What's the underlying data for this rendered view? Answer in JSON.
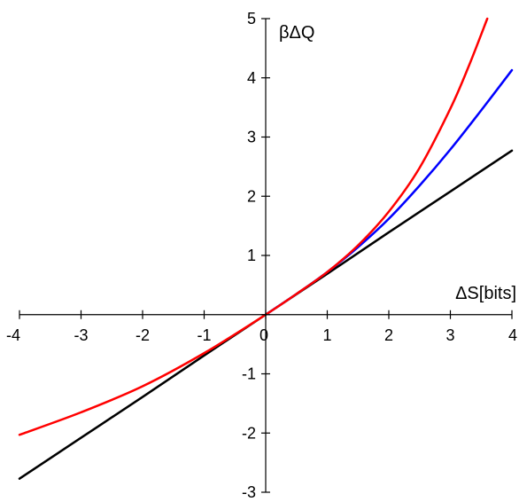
{
  "chart_data": {
    "type": "line",
    "title": "",
    "xlabel": "ΔS[bits]",
    "ylabel": "βΔQ",
    "xlim": [
      -4,
      4
    ],
    "ylim": [
      -3,
      5
    ],
    "xticks": [
      -4,
      -3,
      -2,
      -1,
      0,
      1,
      2,
      3,
      4
    ],
    "yticks": [
      -3,
      -2,
      -1,
      0,
      1,
      2,
      3,
      4,
      5
    ],
    "xtick_labels": [
      "-4",
      "-3",
      "-2",
      "-1",
      "0",
      "1",
      "2",
      "3",
      "4"
    ],
    "ytick_labels": [
      "-3",
      "-2",
      "-1",
      "1",
      "2",
      "3",
      "4",
      "5"
    ],
    "axes_cross_at_origin": true,
    "grid": false,
    "series": [
      {
        "color": "#000000",
        "x": [
          -4,
          -3,
          -2,
          -1,
          0,
          1,
          2,
          3,
          4
        ],
        "y": [
          -2.77,
          -2.08,
          -1.39,
          -0.69,
          0,
          0.69,
          1.39,
          2.08,
          2.77
        ]
      },
      {
        "color": "#0000ff",
        "x": [
          0,
          0.5,
          1,
          1.5,
          2,
          2.5,
          3,
          3.5,
          4
        ],
        "y": [
          0,
          0.35,
          0.72,
          1.14,
          1.62,
          2.18,
          2.79,
          3.45,
          4.13
        ]
      },
      {
        "color": "#ff0000",
        "x": [
          -4,
          -3,
          -2,
          -1,
          0,
          0.5,
          1,
          1.5,
          2,
          2.5,
          3,
          3.3,
          3.6
        ],
        "y": [
          -2.03,
          -1.65,
          -1.21,
          -0.65,
          0,
          0.35,
          0.72,
          1.17,
          1.74,
          2.48,
          3.48,
          4.2,
          5.0
        ]
      }
    ]
  }
}
